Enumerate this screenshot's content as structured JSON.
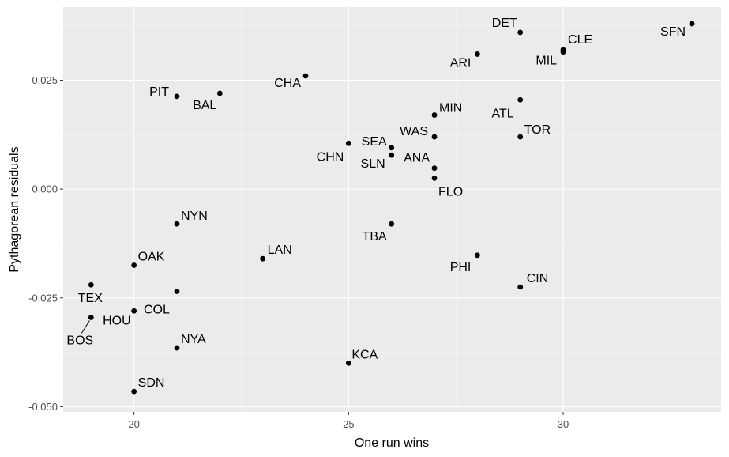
{
  "chart_data": {
    "type": "scatter",
    "xlabel": "One run wins",
    "ylabel": "Pythagorean residuals",
    "xlim": [
      18.35,
      33.68
    ],
    "ylim": [
      -0.0512,
      0.0418
    ],
    "xticks": [
      20,
      25,
      30
    ],
    "xtick_labels": [
      "20",
      "25",
      "30"
    ],
    "yticks": [
      -0.05,
      -0.025,
      0.0,
      0.025
    ],
    "ytick_labels": [
      "-0.050",
      "-0.025",
      "0.000",
      "0.025"
    ],
    "grid": true,
    "colors": {
      "panel": "#ebebeb",
      "grid": "#ffffff",
      "point": "#000000"
    },
    "points": [
      {
        "label": "SFN",
        "x": 33,
        "y": 0.038
      },
      {
        "label": "CLE",
        "x": 30,
        "y": 0.032
      },
      {
        "label": "MIL",
        "x": 30,
        "y": 0.0315
      },
      {
        "label": "DET",
        "x": 29,
        "y": 0.036
      },
      {
        "label": "ARI",
        "x": 28,
        "y": 0.031
      },
      {
        "label": "CHA",
        "x": 24,
        "y": 0.026
      },
      {
        "label": "BAL",
        "x": 22,
        "y": 0.022
      },
      {
        "label": "PIT",
        "x": 21,
        "y": 0.0213
      },
      {
        "label": "ATL",
        "x": 29,
        "y": 0.0205
      },
      {
        "label": "TOR",
        "x": 29,
        "y": 0.012
      },
      {
        "label": "MIN",
        "x": 27,
        "y": 0.017
      },
      {
        "label": "WAS",
        "x": 27,
        "y": 0.012
      },
      {
        "label": "CHN",
        "x": 25,
        "y": 0.0105
      },
      {
        "label": "SEA",
        "x": 26,
        "y": 0.0095
      },
      {
        "label": "ANA",
        "x": 27,
        "y": 0.0048
      },
      {
        "label": "SLN",
        "x": 26,
        "y": 0.0078
      },
      {
        "label": "FLO",
        "x": 27,
        "y": 0.0025
      },
      {
        "label": "NYN",
        "x": 21,
        "y": -0.008
      },
      {
        "label": "TBA",
        "x": 26,
        "y": -0.008
      },
      {
        "label": "LAN",
        "x": 23,
        "y": -0.016
      },
      {
        "label": "OAK",
        "x": 20,
        "y": -0.0175
      },
      {
        "label": "PHI",
        "x": 28,
        "y": -0.0152
      },
      {
        "label": "TEX",
        "x": 19,
        "y": -0.022
      },
      {
        "label": "CIN",
        "x": 29,
        "y": -0.0225
      },
      {
        "label": "COL",
        "x": 21,
        "y": -0.0235
      },
      {
        "label": "HOU",
        "x": 20,
        "y": -0.028
      },
      {
        "label": "BOS",
        "x": 19,
        "y": -0.0295
      },
      {
        "label": "NYA",
        "x": 21,
        "y": -0.0365
      },
      {
        "label": "KCA",
        "x": 25,
        "y": -0.04
      },
      {
        "label": "SDN",
        "x": 20,
        "y": -0.0465
      }
    ]
  }
}
